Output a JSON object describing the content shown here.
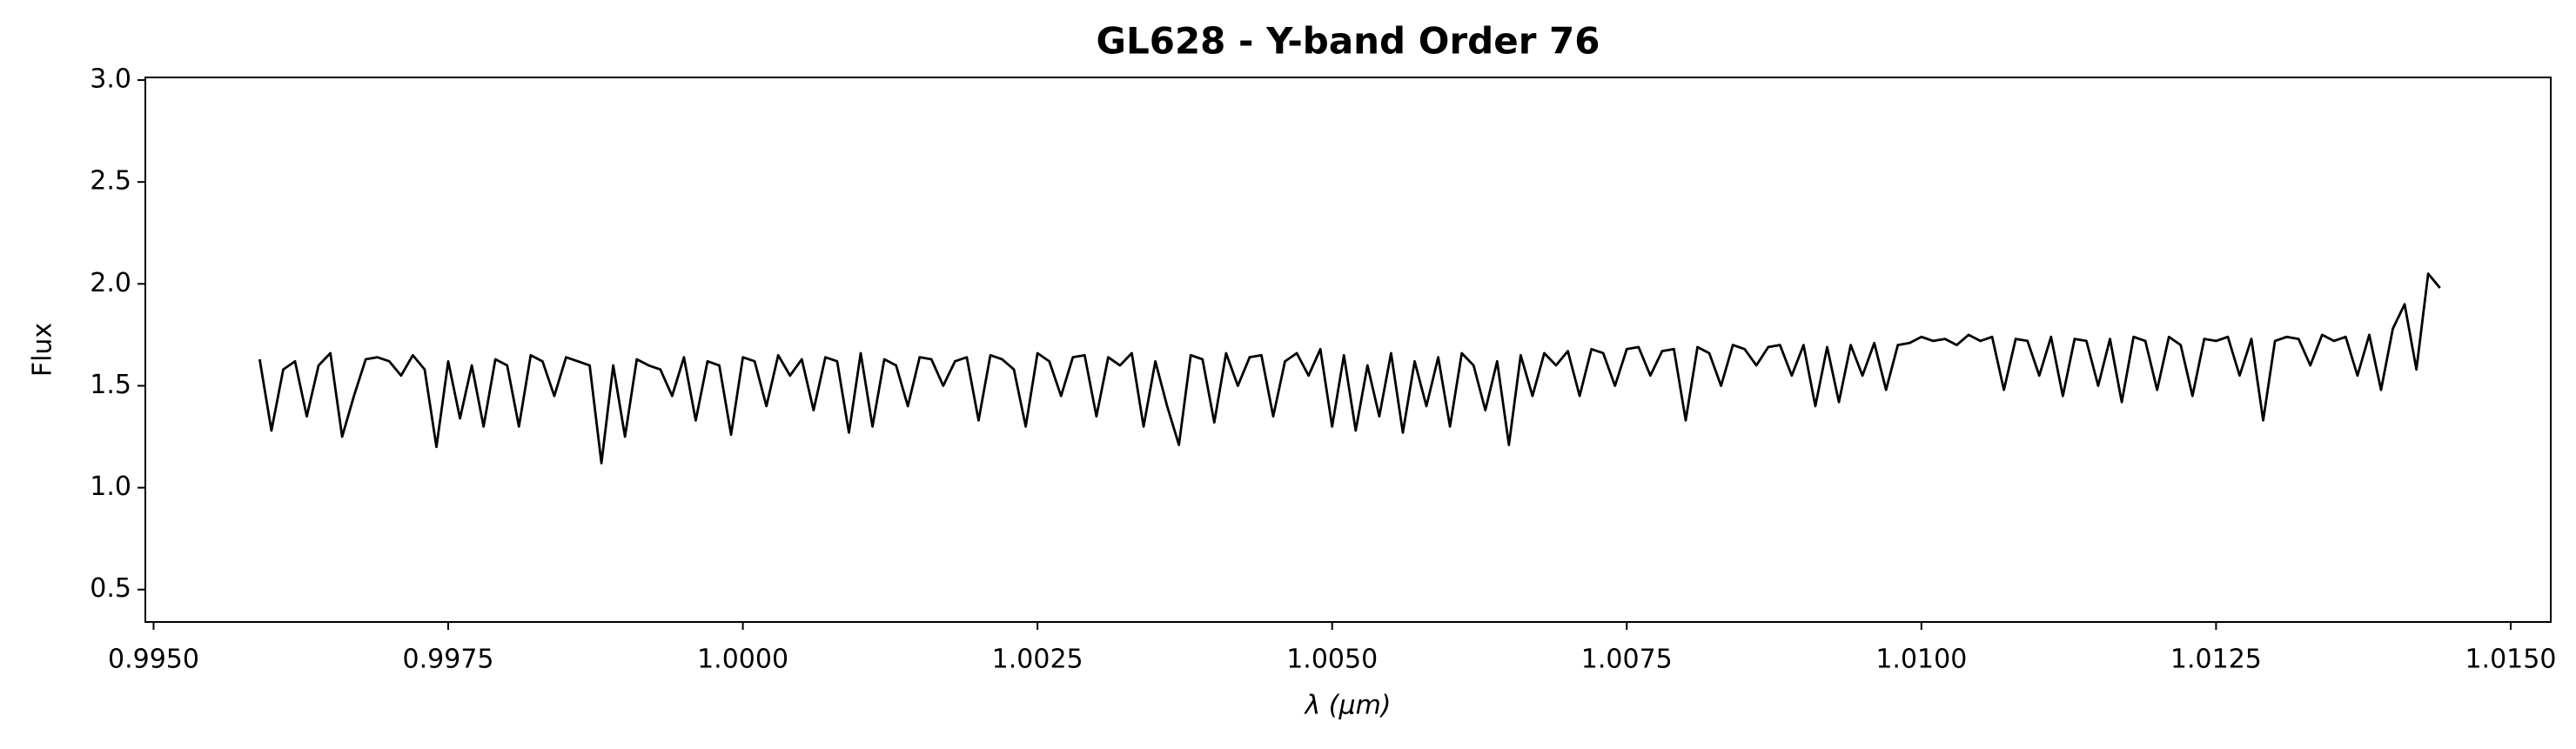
{
  "chart_data": {
    "type": "line",
    "title": "GL628 - Y-band Order 76",
    "x_label": "λ (μm)",
    "y_label": "Flux",
    "xlim": [
      0.99493,
      1.01534
    ],
    "ylim": [
      0.341,
      3.013
    ],
    "xticks": [
      {
        "value": 0.995,
        "label": "0.9950"
      },
      {
        "value": 0.9975,
        "label": "0.9975"
      },
      {
        "value": 1.0,
        "label": "1.0000"
      },
      {
        "value": 1.0025,
        "label": "1.0025"
      },
      {
        "value": 1.005,
        "label": "1.0050"
      },
      {
        "value": 1.0075,
        "label": "1.0075"
      },
      {
        "value": 1.01,
        "label": "1.0100"
      },
      {
        "value": 1.0125,
        "label": "1.0125"
      },
      {
        "value": 1.015,
        "label": "1.0150"
      }
    ],
    "yticks": [
      0.5,
      {
        "value": 1.0,
        "label": "1.0"
      },
      1.5,
      {
        "value": 2.0,
        "label": "2.0"
      },
      2.5,
      {
        "value": 3.0,
        "label": "3.0"
      }
    ],
    "x": [
      0.9959,
      0.996,
      0.9961,
      0.9962,
      0.9963,
      0.9964,
      0.9965,
      0.9966,
      0.9967,
      0.9968,
      0.9969,
      0.997,
      0.9971,
      0.9972,
      0.9973,
      0.9974,
      0.9975,
      0.9976,
      0.9977,
      0.9978,
      0.9979,
      0.998,
      0.9981,
      0.9982,
      0.9983,
      0.9984,
      0.9985,
      0.9986,
      0.9987,
      0.9988,
      0.9989,
      0.999,
      0.9991,
      0.9992,
      0.9993,
      0.9994,
      0.9995,
      0.9996,
      0.9997,
      0.9998,
      0.9999,
      1.0,
      1.0001,
      1.0002,
      1.0003,
      1.0004,
      1.0005,
      1.0006,
      1.0007,
      1.0008,
      1.0009,
      1.001,
      1.0011,
      1.0012,
      1.0013,
      1.0014,
      1.0015,
      1.0016,
      1.0017,
      1.0018,
      1.0019,
      1.002,
      1.0021,
      1.0022,
      1.0023,
      1.0024,
      1.0025,
      1.0026,
      1.0027,
      1.0028,
      1.0029,
      1.003,
      1.0031,
      1.0032,
      1.0033,
      1.0034,
      1.0035,
      1.0036,
      1.0037,
      1.0038,
      1.0039,
      1.004,
      1.0041,
      1.0042,
      1.0043,
      1.0044,
      1.0045,
      1.0046,
      1.0047,
      1.0048,
      1.0049,
      1.005,
      1.0051,
      1.0052,
      1.0053,
      1.0054,
      1.0055,
      1.0056,
      1.0057,
      1.0058,
      1.0059,
      1.006,
      1.0061,
      1.0062,
      1.0063,
      1.0064,
      1.0065,
      1.0066,
      1.0067,
      1.0068,
      1.0069,
      1.007,
      1.0071,
      1.0072,
      1.0073,
      1.0074,
      1.0075,
      1.0076,
      1.0077,
      1.0078,
      1.0079,
      1.008,
      1.0081,
      1.0082,
      1.0083,
      1.0084,
      1.0085,
      1.0086,
      1.0087,
      1.0088,
      1.0089,
      1.009,
      1.0091,
      1.0092,
      1.0093,
      1.0094,
      1.0095,
      1.0096,
      1.0097,
      1.0098,
      1.0099,
      1.01,
      1.0101,
      1.0102,
      1.0103,
      1.0104,
      1.0105,
      1.0106,
      1.0107,
      1.0108,
      1.0109,
      1.011,
      1.0111,
      1.0112,
      1.0113,
      1.0114,
      1.0115,
      1.0116,
      1.0117,
      1.0118,
      1.0119,
      1.012,
      1.0121,
      1.0122,
      1.0123,
      1.0124,
      1.0125,
      1.0126,
      1.0127,
      1.0128,
      1.0129,
      1.013,
      1.0131,
      1.0132,
      1.0133,
      1.0134,
      1.0135,
      1.0136,
      1.0137,
      1.0138,
      1.0139,
      1.014,
      1.0141,
      1.0142,
      1.0143,
      1.0144
    ],
    "series": [
      {
        "name": "GL628",
        "color": "#000000",
        "values": [
          1.63,
          1.28,
          1.58,
          1.62,
          1.35,
          1.6,
          1.66,
          1.25,
          1.45,
          1.63,
          1.64,
          1.62,
          1.55,
          1.65,
          1.58,
          1.2,
          1.62,
          1.34,
          1.6,
          1.3,
          1.63,
          1.6,
          1.3,
          1.65,
          1.62,
          1.45,
          1.64,
          1.62,
          1.6,
          1.12,
          1.6,
          1.25,
          1.63,
          1.6,
          1.58,
          1.45,
          1.64,
          1.33,
          1.62,
          1.6,
          1.26,
          1.64,
          1.62,
          1.4,
          1.65,
          1.55,
          1.63,
          1.38,
          1.64,
          1.62,
          1.27,
          1.66,
          1.3,
          1.63,
          1.6,
          1.4,
          1.64,
          1.63,
          1.5,
          1.62,
          1.64,
          1.33,
          1.65,
          1.63,
          1.58,
          1.3,
          1.66,
          1.62,
          1.45,
          1.64,
          1.65,
          1.35,
          1.64,
          1.6,
          1.66,
          1.3,
          1.62,
          1.4,
          1.21,
          1.65,
          1.63,
          1.32,
          1.66,
          1.5,
          1.64,
          1.65,
          1.35,
          1.62,
          1.66,
          1.55,
          1.68,
          1.3,
          1.65,
          1.28,
          1.6,
          1.35,
          1.66,
          1.27,
          1.62,
          1.4,
          1.64,
          1.3,
          1.66,
          1.6,
          1.38,
          1.62,
          1.21,
          1.65,
          1.45,
          1.66,
          1.6,
          1.67,
          1.45,
          1.68,
          1.66,
          1.5,
          1.68,
          1.69,
          1.55,
          1.67,
          1.68,
          1.33,
          1.69,
          1.66,
          1.5,
          1.7,
          1.68,
          1.6,
          1.69,
          1.7,
          1.55,
          1.7,
          1.4,
          1.69,
          1.42,
          1.7,
          1.55,
          1.71,
          1.48,
          1.7,
          1.71,
          1.74,
          1.72,
          1.73,
          1.7,
          1.75,
          1.72,
          1.74,
          1.48,
          1.73,
          1.72,
          1.55,
          1.74,
          1.45,
          1.73,
          1.72,
          1.5,
          1.73,
          1.42,
          1.74,
          1.72,
          1.48,
          1.74,
          1.7,
          1.45,
          1.73,
          1.72,
          1.74,
          1.55,
          1.73,
          1.33,
          1.72,
          1.74,
          1.73,
          1.6,
          1.75,
          1.72,
          1.74,
          1.55,
          1.75,
          1.48,
          1.78,
          1.9,
          1.58,
          2.05,
          1.98
        ]
      }
    ]
  }
}
